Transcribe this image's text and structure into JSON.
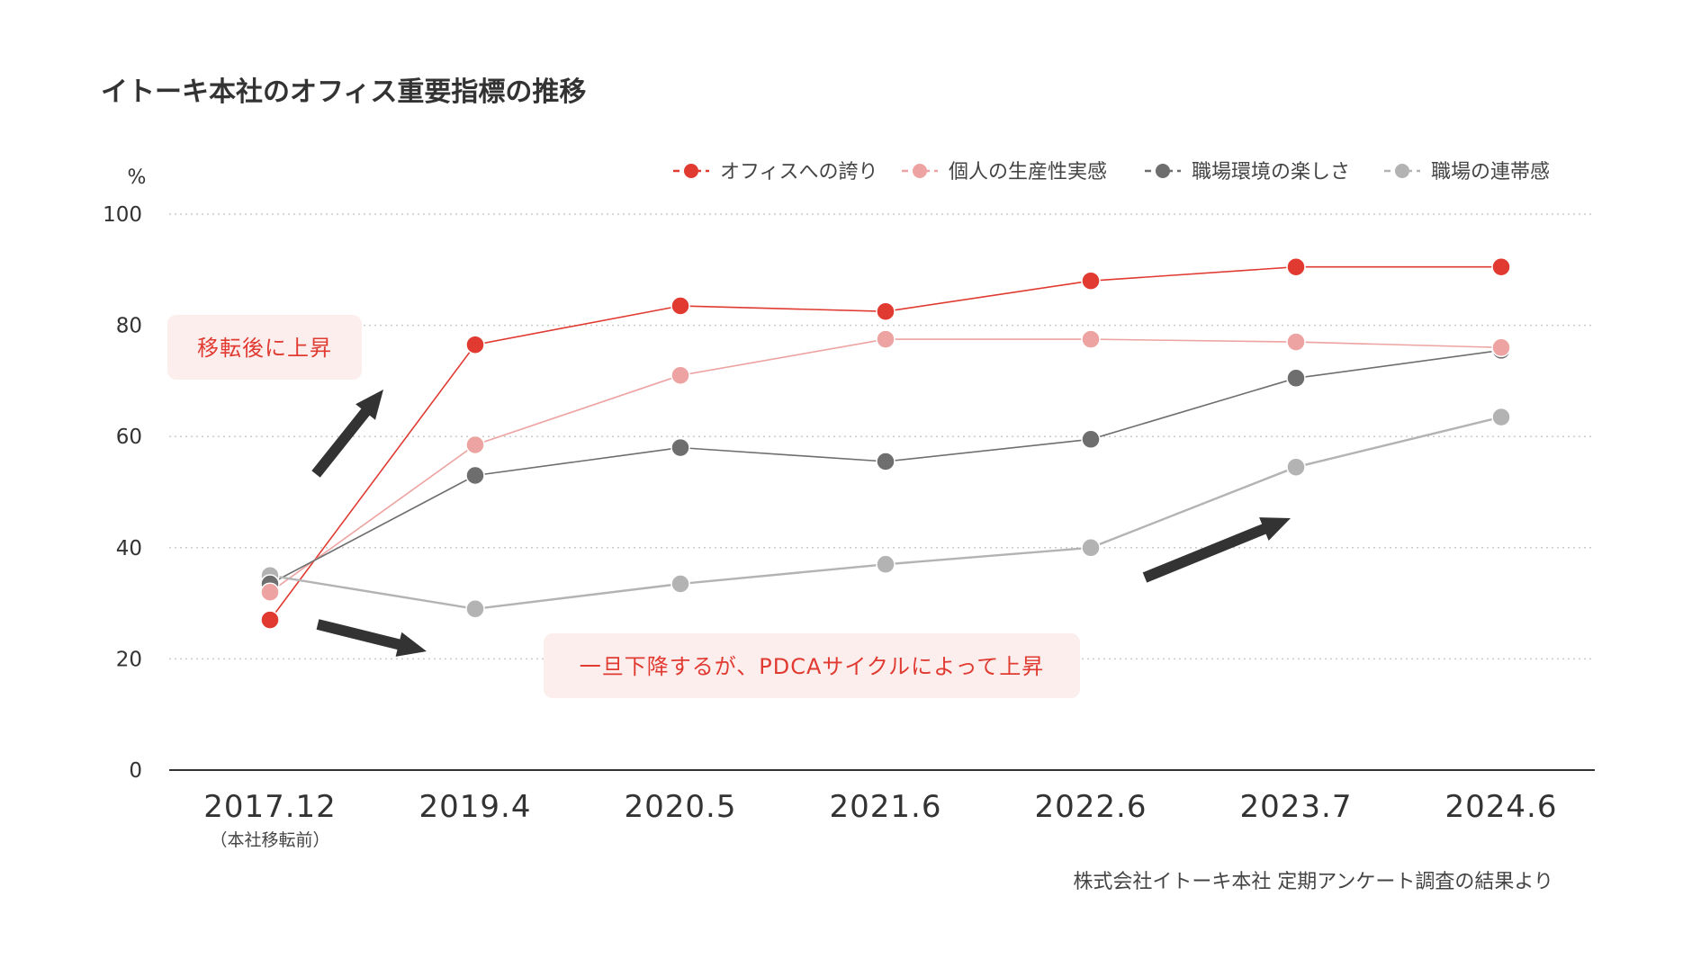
{
  "title": "イトーキ本社のオフィス重要指標の推移",
  "source_note": "株式会社イトーキ本社 定期アンケート調査の結果より",
  "chart_data": {
    "type": "line",
    "title": "イトーキ本社のオフィス重要指標の推移",
    "ylabel": "%",
    "xlabel": "",
    "ylim": [
      0,
      100
    ],
    "yticks": [
      0,
      20,
      40,
      60,
      80,
      100
    ],
    "grid": true,
    "legend_position": "top-right",
    "categories": [
      "2017.12",
      "2019.4",
      "2020.5",
      "2021.6",
      "2022.6",
      "2023.7",
      "2024.6"
    ],
    "category_sublabels": [
      "（本社移転前）",
      "",
      "",
      "",
      "",
      "",
      ""
    ],
    "series": [
      {
        "name": "オフィスへの誇り",
        "color": "#e03a31",
        "values": [
          27,
          76.5,
          83.5,
          82.5,
          88,
          90.5,
          90.5
        ]
      },
      {
        "name": "個人の生産性実感",
        "color": "#eda3a1",
        "values": [
          32,
          58.5,
          71,
          77.5,
          77.5,
          77,
          76
        ]
      },
      {
        "name": "職場環境の楽しさ",
        "color": "#6e6e6e",
        "values": [
          33.5,
          53,
          58,
          55.5,
          59.5,
          70.5,
          75.5
        ]
      },
      {
        "name": "職場の連帯感",
        "color": "#b3b3b3",
        "values": [
          35,
          29,
          33.5,
          37,
          40,
          54.5,
          63.5
        ]
      }
    ],
    "annotations": [
      {
        "text": "移転後に上昇"
      },
      {
        "text": "一旦下降するが、PDCAサイクルによって上昇"
      }
    ]
  }
}
